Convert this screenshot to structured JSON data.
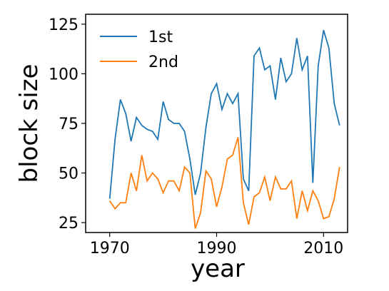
{
  "chart_data": {
    "type": "line",
    "title": "",
    "xlabel": "year",
    "ylabel": "block size",
    "xlim": [
      1965.5,
      2014.5
    ],
    "ylim": [
      20,
      130
    ],
    "xticks": [
      1970,
      1990,
      2010
    ],
    "xtick_labels": [
      "1970",
      "1990",
      "2010"
    ],
    "yticks": [
      25,
      50,
      75,
      100,
      125
    ],
    "ytick_labels": [
      "25",
      "50",
      "75",
      "100",
      "125"
    ],
    "grid": false,
    "legend_position": "top-left",
    "x": [
      1970,
      1971,
      1972,
      1973,
      1974,
      1975,
      1976,
      1977,
      1978,
      1979,
      1980,
      1981,
      1982,
      1983,
      1984,
      1985,
      1986,
      1987,
      1988,
      1989,
      1990,
      1991,
      1992,
      1993,
      1994,
      1995,
      1996,
      1997,
      1998,
      1999,
      2000,
      2001,
      2002,
      2003,
      2004,
      2005,
      2006,
      2007,
      2008,
      2009,
      2010,
      2011,
      2012,
      2013
    ],
    "series": [
      {
        "name": "1st",
        "color": "#1f77b4",
        "values": [
          37,
          67,
          87,
          80,
          66,
          78,
          74,
          72,
          71,
          67,
          86,
          77,
          75,
          75,
          71,
          57,
          39,
          50,
          73,
          90,
          95,
          82,
          90,
          85,
          90,
          47,
          41,
          109,
          113,
          102,
          104,
          87,
          108,
          96,
          100,
          118,
          102,
          109,
          45,
          104,
          122,
          113,
          85,
          74
        ]
      },
      {
        "name": "2nd",
        "color": "#ff7f0e",
        "values": [
          36,
          32,
          35,
          35,
          50,
          41,
          59,
          46,
          50,
          47,
          40,
          46,
          46,
          41,
          53,
          50,
          22,
          30,
          51,
          47,
          33,
          43,
          57,
          59,
          68,
          35,
          24,
          38,
          40,
          48,
          36,
          48,
          42,
          42,
          46,
          27,
          41,
          31,
          41,
          36,
          27,
          28,
          37,
          53
        ]
      }
    ]
  }
}
